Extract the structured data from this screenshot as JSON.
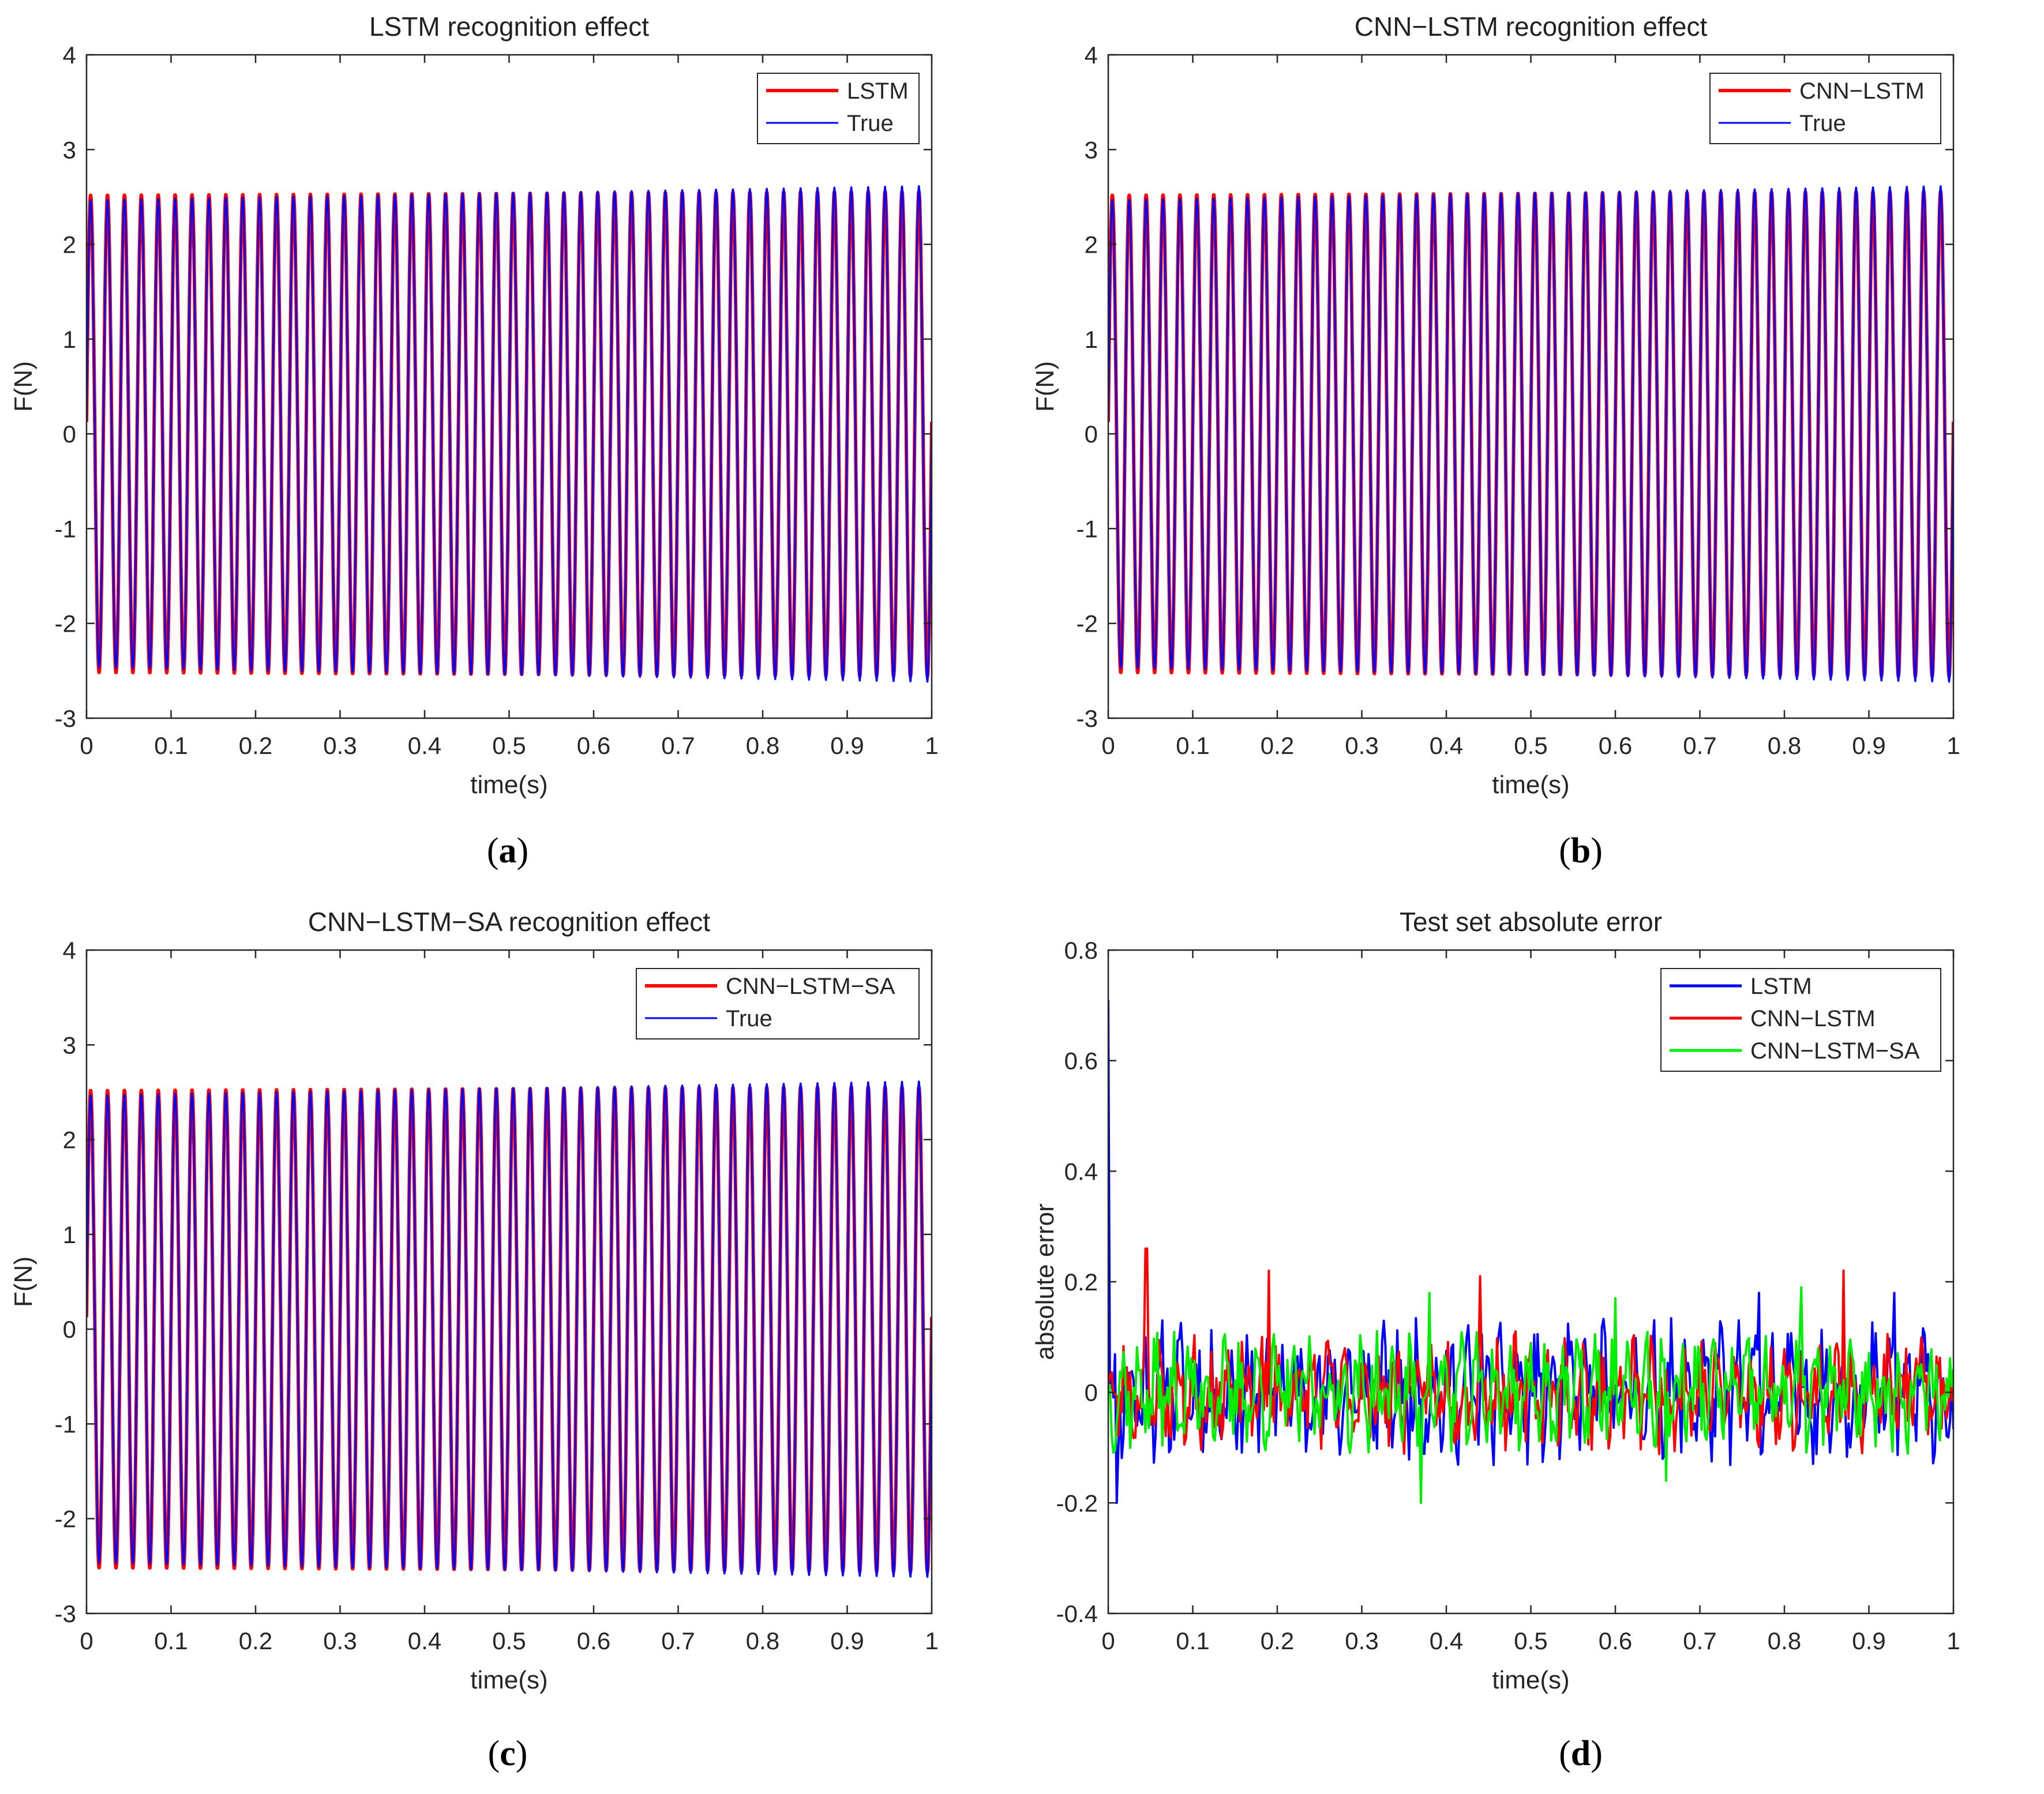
{
  "chart_data": [
    {
      "id": "a",
      "type": "line",
      "title": "LSTM recognition effect",
      "xlabel": "time(s)",
      "ylabel": "F(N)",
      "xlim": [
        0,
        1
      ],
      "ylim": [
        -3,
        4
      ],
      "xticks": [
        "0",
        "0.1",
        "0.2",
        "0.3",
        "0.4",
        "0.5",
        "0.6",
        "0.7",
        "0.8",
        "0.9",
        "1"
      ],
      "yticks": [
        "-3",
        "-2",
        "-1",
        "0",
        "1",
        "2",
        "3",
        "4"
      ],
      "legend": {
        "position": "top-right",
        "entries": [
          "LSTM",
          "True"
        ]
      },
      "series": [
        {
          "name": "LSTM",
          "color": "#ff0000",
          "kind": "sine",
          "cycles": 50,
          "amplitude_start": 2.52,
          "amplitude_end": 2.56,
          "phase": 0.05
        },
        {
          "name": "True",
          "color": "#0000ff",
          "kind": "sine",
          "cycles": 50,
          "amplitude_start": 2.47,
          "amplitude_end": 2.62,
          "phase": 0.05
        }
      ],
      "caption": "a"
    },
    {
      "id": "b",
      "type": "line",
      "title": "CNN−LSTM recognition effect",
      "xlabel": "time(s)",
      "ylabel": "F(N)",
      "xlim": [
        0,
        1
      ],
      "ylim": [
        -3,
        4
      ],
      "xticks": [
        "0",
        "0.1",
        "0.2",
        "0.3",
        "0.4",
        "0.5",
        "0.6",
        "0.7",
        "0.8",
        "0.9",
        "1"
      ],
      "yticks": [
        "-3",
        "-2",
        "-1",
        "0",
        "1",
        "2",
        "3",
        "4"
      ],
      "legend": {
        "position": "top-right",
        "entries": [
          "CNN−LSTM",
          "True"
        ]
      },
      "series": [
        {
          "name": "CNN−LSTM",
          "color": "#ff0000",
          "kind": "sine",
          "cycles": 50,
          "amplitude_start": 2.52,
          "amplitude_end": 2.56,
          "phase": 0.05
        },
        {
          "name": "True",
          "color": "#0000ff",
          "kind": "sine",
          "cycles": 50,
          "amplitude_start": 2.47,
          "amplitude_end": 2.62,
          "phase": 0.05
        }
      ],
      "caption": "b"
    },
    {
      "id": "c",
      "type": "line",
      "title": "CNN−LSTM−SA recognition effect",
      "xlabel": "time(s)",
      "ylabel": "F(N)",
      "xlim": [
        0,
        1
      ],
      "ylim": [
        -3,
        4
      ],
      "xticks": [
        "0",
        "0.1",
        "0.2",
        "0.3",
        "0.4",
        "0.5",
        "0.6",
        "0.7",
        "0.8",
        "0.9",
        "1"
      ],
      "yticks": [
        "-3",
        "-2",
        "-1",
        "0",
        "1",
        "2",
        "3",
        "4"
      ],
      "legend": {
        "position": "top-right",
        "entries": [
          "CNN−LSTM−SA",
          "True"
        ]
      },
      "series": [
        {
          "name": "CNN−LSTM−SA",
          "color": "#ff0000",
          "kind": "sine",
          "cycles": 50,
          "amplitude_start": 2.52,
          "amplitude_end": 2.56,
          "phase": 0.05
        },
        {
          "name": "True",
          "color": "#0000ff",
          "kind": "sine",
          "cycles": 50,
          "amplitude_start": 2.47,
          "amplitude_end": 2.62,
          "phase": 0.05
        }
      ],
      "caption": "c"
    },
    {
      "id": "d",
      "type": "line",
      "title": "Test set absolute error",
      "xlabel": "time(s)",
      "ylabel": "absolute error",
      "xlim": [
        0,
        1
      ],
      "ylim": [
        -0.4,
        0.8
      ],
      "xticks": [
        "0",
        "0.1",
        "0.2",
        "0.3",
        "0.4",
        "0.5",
        "0.6",
        "0.7",
        "0.8",
        "0.9",
        "1"
      ],
      "yticks": [
        "-0.4",
        "-0.2",
        "0",
        "0.2",
        "0.4",
        "0.6",
        "0.8"
      ],
      "legend": {
        "position": "top-right",
        "entries": [
          "LSTM",
          "CNN−LSTM",
          "CNN−LSTM−SA"
        ]
      },
      "series": [
        {
          "name": "LSTM",
          "color": "#0000ff",
          "kind": "noise",
          "seed": 11,
          "amplitude": 0.12,
          "samples": 500,
          "spikes": [
            [
              0.0,
              0.71
            ],
            [
              0.01,
              -0.2
            ],
            [
              0.77,
              0.18
            ],
            [
              0.93,
              0.18
            ]
          ]
        },
        {
          "name": "CNN−LSTM",
          "color": "#ff0000",
          "kind": "noise",
          "seed": 23,
          "amplitude": 0.1,
          "samples": 500,
          "spikes": [
            [
              0.045,
              0.26
            ],
            [
              0.19,
              0.22
            ],
            [
              0.44,
              0.21
            ],
            [
              0.87,
              0.22
            ]
          ]
        },
        {
          "name": "CNN−LSTM−SA",
          "color": "#00ee00",
          "kind": "noise",
          "seed": 37,
          "amplitude": 0.1,
          "samples": 500,
          "spikes": [
            [
              0.37,
              -0.2
            ],
            [
              0.38,
              0.18
            ],
            [
              0.6,
              0.17
            ],
            [
              0.66,
              -0.16
            ],
            [
              0.82,
              0.19
            ]
          ]
        }
      ],
      "caption": "d"
    }
  ]
}
